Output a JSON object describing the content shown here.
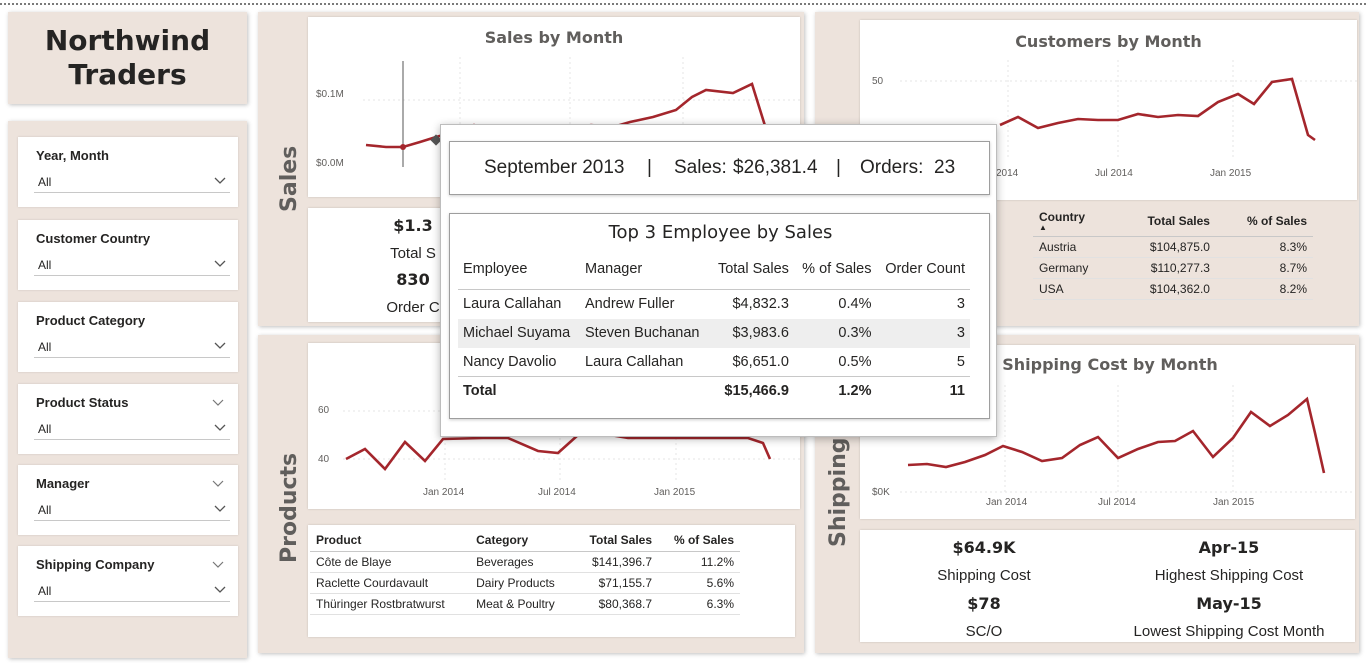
{
  "app": {
    "title_line1": "Northwind",
    "title_line2": "Traders"
  },
  "slicers": [
    {
      "label": "Year, Month",
      "value": "All",
      "has_top_chevron": false
    },
    {
      "label": "Customer Country",
      "value": "All",
      "has_top_chevron": false
    },
    {
      "label": "Product Category",
      "value": "All",
      "has_top_chevron": false
    },
    {
      "label": "Product Status",
      "value": "All",
      "has_top_chevron": true
    },
    {
      "label": "Manager",
      "value": "All",
      "has_top_chevron": true
    },
    {
      "label": "Shipping Company",
      "value": "All",
      "has_top_chevron": true
    }
  ],
  "sales": {
    "section_label": "Sales",
    "chart_title": "Sales by Month",
    "y_labels": [
      "$0.1M",
      "$0.0M"
    ],
    "kpi1_value": "$1.3",
    "kpi1_label": "Total S",
    "kpi2_value": "830",
    "kpi2_label": "Order C"
  },
  "customers": {
    "chart_title": "Customers by Month",
    "y_labels": [
      "50"
    ],
    "x_labels": [
      "2014",
      "Jul 2014",
      "Jan 2015"
    ],
    "table": {
      "headers": [
        "Country",
        "Total Sales",
        "% of Sales"
      ],
      "rows": [
        [
          "Austria",
          "$104,875.0",
          "8.3%"
        ],
        [
          "Germany",
          "$110,277.3",
          "8.7%"
        ],
        [
          "USA",
          "$104,362.0",
          "8.2%"
        ]
      ]
    }
  },
  "products": {
    "section_label": "Products",
    "y_labels": [
      "60",
      "40"
    ],
    "x_labels": [
      "Jan 2014",
      "Jul 2014",
      "Jan 2015"
    ],
    "table": {
      "headers": [
        "Product",
        "Category",
        "Total Sales",
        "% of Sales"
      ],
      "rows": [
        [
          "Côte de Blaye",
          "Beverages",
          "$141,396.7",
          "11.2%"
        ],
        [
          "Raclette Courdavault",
          "Dairy Products",
          "$71,155.7",
          "5.6%"
        ],
        [
          "Thüringer Rostbratwurst",
          "Meat & Poultry",
          "$80,368.7",
          "6.3%"
        ]
      ]
    }
  },
  "shipping": {
    "section_label": "Shipping",
    "chart_title": "Shipping Cost by Month",
    "y_labels": [
      "$0K"
    ],
    "x_labels": [
      "Jan 2014",
      "Jul 2014",
      "Jan 2015"
    ],
    "kpis": [
      {
        "value": "$64.9K",
        "label": "Shipping Cost"
      },
      {
        "value": "Apr-15",
        "label": "Highest Shipping Cost"
      },
      {
        "value": "$78",
        "label": "SC/O"
      },
      {
        "value": "May-15",
        "label": "Lowest Shipping Cost Month"
      }
    ]
  },
  "tooltip": {
    "month": "September 2013",
    "sep": "|",
    "sales_label": "Sales:",
    "sales_value": "$26,381.4",
    "orders_label": "Orders:",
    "orders_value": "23",
    "table_title": "Top 3 Employee by Sales",
    "headers": [
      "Employee",
      "Manager",
      "Total Sales",
      "% of Sales",
      "Order Count"
    ],
    "rows": [
      [
        "Laura Callahan",
        "Andrew Fuller",
        "$4,832.3",
        "0.4%",
        "3"
      ],
      [
        "Michael Suyama",
        "Steven Buchanan",
        "$3,983.6",
        "0.3%",
        "3"
      ],
      [
        "Nancy Davolio",
        "Laura Callahan",
        "$6,651.0",
        "0.5%",
        "5"
      ]
    ],
    "total": [
      "Total",
      "",
      "$15,466.9",
      "1.2%",
      "11"
    ]
  },
  "colors": {
    "line": "#a4262c",
    "panel": "#ede3dc",
    "grid": "#e6e6e6"
  }
}
